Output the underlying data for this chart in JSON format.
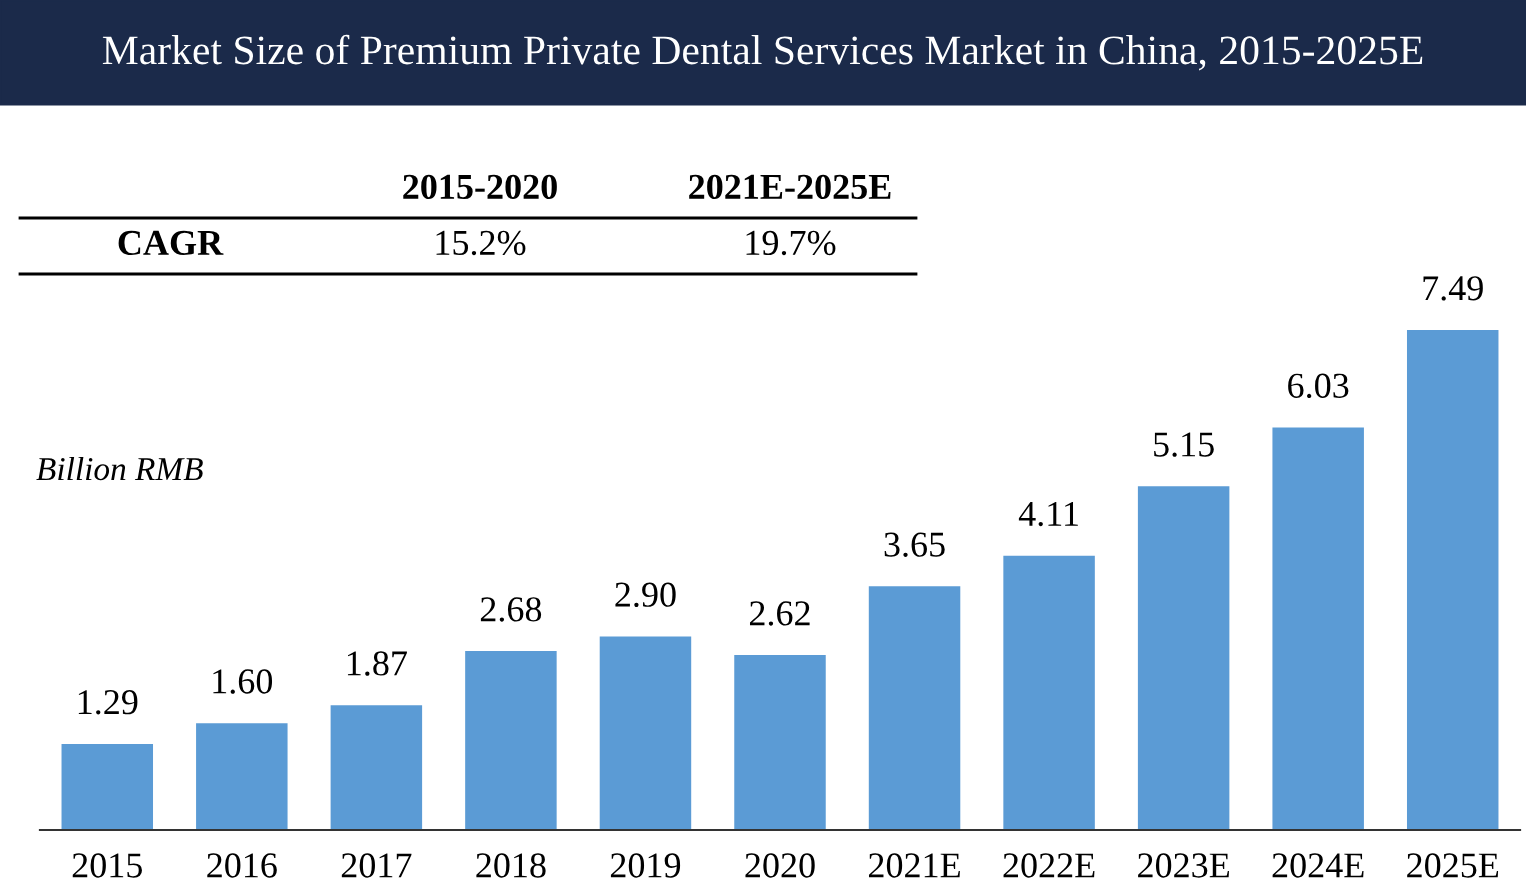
{
  "chart_data": {
    "type": "bar",
    "title": "Market Size of Premium Private Dental Services Market in China, 2015-2025E",
    "ylabel": "Billion RMB",
    "categories": [
      "2015",
      "2016",
      "2017",
      "2018",
      "2019",
      "2020",
      "2021E",
      "2022E",
      "2023E",
      "2024E",
      "2025E"
    ],
    "values": [
      1.29,
      1.6,
      1.87,
      2.68,
      2.9,
      2.62,
      3.65,
      4.11,
      5.15,
      6.03,
      7.49
    ],
    "color": "#5b9bd5",
    "value_labels": [
      "1.29",
      "1.60",
      "1.87",
      "2.68",
      "2.90",
      "2.62",
      "3.65",
      "4.11",
      "5.15",
      "6.03",
      "7.49"
    ],
    "grid": false,
    "legend": false,
    "annotations": [
      "2015-2020",
      "2021E-2025E",
      "CAGR",
      "15.2%",
      "19.7%"
    ]
  }
}
